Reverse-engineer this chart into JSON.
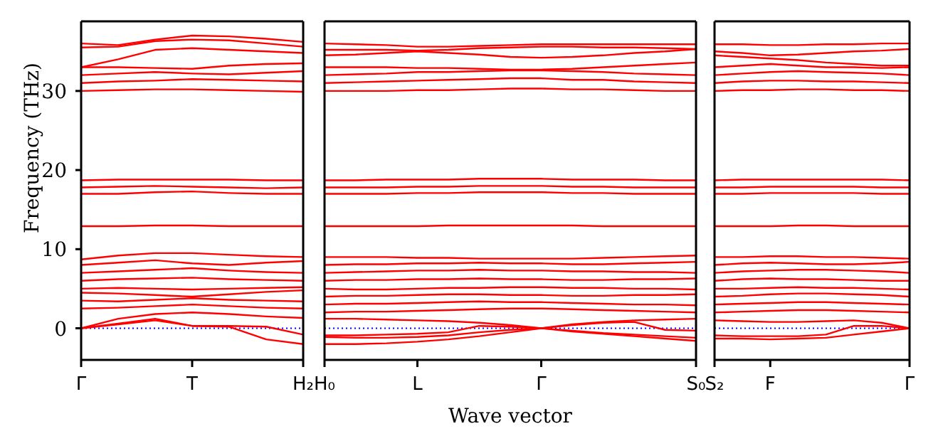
{
  "chart_data": [
    {
      "type": "line",
      "ylabel": "Frequency (THz)",
      "categories": [
        "Γ",
        null,
        null,
        "T",
        null,
        null,
        "H₂"
      ],
      "ylim": [
        -4,
        38.8
      ],
      "yticks": [
        0,
        10,
        20,
        30
      ],
      "marker": "none",
      "line_style": "solid",
      "ref_lines": [
        {
          "axis": "y",
          "value": 0,
          "color": "#0000ff",
          "line_style": "dotted"
        }
      ],
      "series": [
        {
          "color": "#ff0000",
          "values": [
            0,
            0.6,
            1.2,
            0.3,
            0.2,
            -1.4,
            -2
          ]
        },
        {
          "color": "#ff0000",
          "values": [
            0,
            0.5,
            1.0,
            0.3,
            0.3,
            0.2,
            -0.8
          ]
        },
        {
          "color": "#ff0000",
          "values": [
            0,
            1.2,
            1.8,
            2.0,
            1.8,
            1.5,
            1.3
          ]
        },
        {
          "color": "#ff0000",
          "values": [
            2.5,
            2.6,
            2.8,
            3.0,
            2.8,
            2.6,
            2.5
          ]
        },
        {
          "color": "#ff0000",
          "values": [
            3.5,
            3.4,
            3.6,
            3.8,
            3.6,
            3.5,
            3.4
          ]
        },
        {
          "color": "#ff0000",
          "values": [
            4.5,
            4.4,
            4.2,
            4.0,
            4.3,
            4.6,
            4.8
          ]
        },
        {
          "color": "#ff0000",
          "values": [
            5,
            5.1,
            5,
            4.9,
            5,
            5.1,
            5.2
          ]
        },
        {
          "color": "#ff0000",
          "values": [
            6,
            6.2,
            6.3,
            6.4,
            6.2,
            6.1,
            6
          ]
        },
        {
          "color": "#ff0000",
          "values": [
            7,
            7.2,
            7.4,
            7.6,
            7.3,
            7.1,
            7
          ]
        },
        {
          "color": "#ff0000",
          "values": [
            8,
            8.3,
            8.6,
            8.2,
            8.0,
            8.3,
            8.5
          ]
        },
        {
          "color": "#ff0000",
          "values": [
            8.7,
            9.2,
            9.5,
            9.5,
            9.3,
            9.1,
            9
          ]
        },
        {
          "color": "#ff0000",
          "values": [
            12.9,
            12.9,
            13,
            13,
            12.9,
            12.9,
            12.9
          ]
        },
        {
          "color": "#ff0000",
          "values": [
            17,
            17,
            17.2,
            17.3,
            17.1,
            17,
            17
          ]
        },
        {
          "color": "#ff0000",
          "values": [
            17.8,
            17.9,
            18,
            17.9,
            17.8,
            17.7,
            17.8
          ]
        },
        {
          "color": "#ff0000",
          "values": [
            18.7,
            18.8,
            18.8,
            18.8,
            18.8,
            18.7,
            18.7
          ]
        },
        {
          "color": "#ff0000",
          "values": [
            30,
            30.1,
            30.2,
            30.2,
            30.1,
            30,
            29.9
          ]
        },
        {
          "color": "#ff0000",
          "values": [
            31,
            31.2,
            31.3,
            31.5,
            31.4,
            31.3,
            31.2
          ]
        },
        {
          "color": "#ff0000",
          "values": [
            32,
            32.2,
            32.4,
            32.2,
            32.1,
            32.3,
            32.5
          ]
        },
        {
          "color": "#ff0000",
          "values": [
            33,
            33,
            32.9,
            32.8,
            33.2,
            33.4,
            33.5
          ]
        },
        {
          "color": "#ff0000",
          "values": [
            33,
            34,
            35.2,
            35.4,
            35.2,
            35,
            34.8
          ]
        },
        {
          "color": "#ff0000",
          "values": [
            35.5,
            35.6,
            36.3,
            36.5,
            36.4,
            36,
            35.6
          ]
        },
        {
          "color": "#ff0000",
          "values": [
            36,
            35.8,
            36.5,
            37,
            36.9,
            36.6,
            36.2
          ]
        }
      ]
    },
    {
      "type": "line",
      "xlabel": "Wave vector",
      "categories": [
        "H₀",
        null,
        null,
        "L",
        null,
        null,
        null,
        "Γ",
        null,
        null,
        null,
        null,
        "S₀"
      ],
      "ylim": [
        -4,
        38.8
      ],
      "tick_labels": "x",
      "marker": "none",
      "line_style": "solid",
      "ref_lines": [
        {
          "axis": "y",
          "value": 0,
          "color": "#0000ff",
          "line_style": "dotted"
        }
      ],
      "series": [
        {
          "color": "#ff0000",
          "values": [
            -2,
            -2,
            -1.9,
            -1.7,
            -1.4,
            -1,
            -0.5,
            0,
            -0.4,
            -0.7,
            -1,
            -1.3,
            -1.6
          ]
        },
        {
          "color": "#ff0000",
          "values": [
            -1.1,
            -1.2,
            -1.2,
            -1.1,
            -0.9,
            -0.5,
            -0.2,
            0,
            -0.3,
            -0.6,
            -0.8,
            -1.0,
            -1.2
          ]
        },
        {
          "color": "#ff0000",
          "values": [
            -0.9,
            -0.9,
            -0.8,
            -0.7,
            -0.5,
            0.3,
            0.2,
            0,
            0.4,
            0.7,
            0.8,
            -0.2,
            -0.3
          ]
        },
        {
          "color": "#ff0000",
          "values": [
            1.2,
            1.2,
            1.1,
            1.0,
            0.9,
            0.7,
            0.4,
            0,
            0.5,
            0.8,
            1.0,
            1.1,
            1.2
          ]
        },
        {
          "color": "#ff0000",
          "values": [
            2,
            2.1,
            2.1,
            2.2,
            2.3,
            2.4,
            2.5,
            2.5,
            2.4,
            2.3,
            2.2,
            2.1,
            2
          ]
        },
        {
          "color": "#ff0000",
          "values": [
            3,
            3.1,
            3.1,
            3.2,
            3.3,
            3.4,
            3.3,
            3.3,
            3.2,
            3.1,
            3.0,
            3.0,
            2.9
          ]
        },
        {
          "color": "#ff0000",
          "values": [
            4,
            4.1,
            4.1,
            4.2,
            4.3,
            4.3,
            4.2,
            4.2,
            4.1,
            4.1,
            4.2,
            4.2,
            4.3
          ]
        },
        {
          "color": "#ff0000",
          "values": [
            5,
            4.9,
            4.9,
            5,
            5.1,
            5.1,
            5.2,
            5.2,
            5.1,
            5.1,
            5,
            5,
            4.9
          ]
        },
        {
          "color": "#ff0000",
          "values": [
            6,
            6.1,
            6.1,
            6.2,
            6.2,
            6.3,
            6.2,
            6.2,
            6.1,
            6.1,
            6.2,
            6.2,
            6.3
          ]
        },
        {
          "color": "#ff0000",
          "values": [
            7,
            7.1,
            7.2,
            7.3,
            7.3,
            7.4,
            7.3,
            7.3,
            7.2,
            7.2,
            7.1,
            7.1,
            7
          ]
        },
        {
          "color": "#ff0000",
          "values": [
            8,
            8.1,
            8.1,
            8.2,
            8.2,
            8.3,
            8.2,
            8.2,
            8.1,
            8.1,
            8.2,
            8.3,
            8.4
          ]
        },
        {
          "color": "#ff0000",
          "values": [
            9,
            9,
            9,
            8.9,
            8.9,
            8.8,
            8.8,
            8.8,
            8.8,
            8.9,
            9,
            9.1,
            9.2
          ]
        },
        {
          "color": "#ff0000",
          "values": [
            12.9,
            12.9,
            12.9,
            12.9,
            13,
            13,
            13,
            13,
            13,
            12.9,
            12.9,
            12.9,
            12.9
          ]
        },
        {
          "color": "#ff0000",
          "values": [
            17,
            17,
            17,
            17.1,
            17.1,
            17.2,
            17.2,
            17.2,
            17.1,
            17.1,
            17,
            17,
            17
          ]
        },
        {
          "color": "#ff0000",
          "values": [
            17.8,
            17.8,
            17.8,
            17.9,
            17.9,
            18,
            18,
            18,
            17.9,
            17.9,
            17.8,
            17.8,
            17.8
          ]
        },
        {
          "color": "#ff0000",
          "values": [
            18.7,
            18.7,
            18.8,
            18.8,
            18.8,
            18.9,
            18.9,
            18.9,
            18.8,
            18.8,
            18.8,
            18.7,
            18.7
          ]
        },
        {
          "color": "#ff0000",
          "values": [
            30,
            30,
            30,
            30.1,
            30.1,
            30.2,
            30.3,
            30.3,
            30.2,
            30.2,
            30.1,
            30,
            30
          ]
        },
        {
          "color": "#ff0000",
          "values": [
            31,
            31.1,
            31.2,
            31.3,
            31.4,
            31.5,
            31.6,
            31.6,
            31.4,
            31.4,
            31.2,
            31.1,
            31
          ]
        },
        {
          "color": "#ff0000",
          "values": [
            32,
            32.1,
            32.2,
            32.4,
            32.4,
            32.5,
            32.6,
            32.6,
            32.5,
            32.4,
            32.2,
            32.1,
            32
          ]
        },
        {
          "color": "#ff0000",
          "values": [
            33,
            33,
            33,
            32.9,
            32.9,
            32.8,
            32.7,
            32.7,
            32.8,
            33,
            33.2,
            33.4,
            33.6
          ]
        },
        {
          "color": "#ff0000",
          "values": [
            34.5,
            34.6,
            34.8,
            35,
            34.8,
            34.6,
            34.3,
            34.2,
            34.3,
            34.5,
            34.8,
            35,
            35.3
          ]
        },
        {
          "color": "#ff0000",
          "values": [
            35.2,
            35.2,
            35.2,
            35.1,
            35.2,
            35.4,
            35.5,
            35.6,
            35.6,
            35.5,
            35.5,
            35.4,
            35.3
          ]
        },
        {
          "color": "#ff0000",
          "values": [
            36,
            35.9,
            35.8,
            35.6,
            35.6,
            35.7,
            35.8,
            35.9,
            35.9,
            35.9,
            35.9,
            35.9,
            35.9
          ]
        }
      ]
    },
    {
      "type": "line",
      "categories": [
        "S₂",
        null,
        "F",
        null,
        null,
        null,
        null,
        "Γ"
      ],
      "ylim": [
        -4,
        38.8
      ],
      "tick_labels": "x",
      "marker": "none",
      "line_style": "solid",
      "ref_lines": [
        {
          "axis": "y",
          "value": 0,
          "color": "#0000ff",
          "line_style": "dotted"
        }
      ],
      "series": [
        {
          "color": "#ff0000",
          "values": [
            -1.3,
            -1.3,
            -1.4,
            -1.3,
            -1.2,
            -0.8,
            -0.4,
            0
          ]
        },
        {
          "color": "#ff0000",
          "values": [
            -0.9,
            -1.0,
            -1.0,
            -1.0,
            -0.8,
            0.3,
            0.3,
            0
          ]
        },
        {
          "color": "#ff0000",
          "values": [
            1.0,
            0.9,
            0.8,
            0.8,
            0.9,
            1.0,
            0.7,
            0
          ]
        },
        {
          "color": "#ff0000",
          "values": [
            2,
            2.1,
            2.2,
            2.3,
            2.3,
            2.2,
            2.1,
            2
          ]
        },
        {
          "color": "#ff0000",
          "values": [
            3,
            3.1,
            3.2,
            3.3,
            3.3,
            3.2,
            3.1,
            3
          ]
        },
        {
          "color": "#ff0000",
          "values": [
            4,
            4.1,
            4.3,
            4.4,
            4.4,
            4.3,
            4.2,
            4
          ]
        },
        {
          "color": "#ff0000",
          "values": [
            5,
            5,
            5.1,
            5.2,
            5.1,
            5.1,
            5,
            4.9
          ]
        },
        {
          "color": "#ff0000",
          "values": [
            6,
            6.2,
            6.3,
            6.2,
            6.2,
            6.1,
            6,
            6
          ]
        },
        {
          "color": "#ff0000",
          "values": [
            7,
            7.2,
            7.3,
            7.4,
            7.4,
            7.3,
            7.2,
            7
          ]
        },
        {
          "color": "#ff0000",
          "values": [
            8,
            8.2,
            8.3,
            8.2,
            8.1,
            8.1,
            8.2,
            8.4
          ]
        },
        {
          "color": "#ff0000",
          "values": [
            9,
            9,
            9.1,
            9.1,
            9,
            9,
            8.9,
            8.8
          ]
        },
        {
          "color": "#ff0000",
          "values": [
            12.9,
            12.9,
            12.9,
            13,
            13,
            12.9,
            12.9,
            12.9
          ]
        },
        {
          "color": "#ff0000",
          "values": [
            17,
            17,
            17.1,
            17.1,
            17.1,
            17.1,
            17,
            17
          ]
        },
        {
          "color": "#ff0000",
          "values": [
            17.8,
            17.8,
            17.9,
            17.9,
            17.9,
            17.9,
            17.8,
            17.8
          ]
        },
        {
          "color": "#ff0000",
          "values": [
            18.7,
            18.8,
            18.8,
            18.8,
            18.8,
            18.8,
            18.8,
            18.7
          ]
        },
        {
          "color": "#ff0000",
          "values": [
            30,
            30.1,
            30.1,
            30.2,
            30.2,
            30.1,
            30.1,
            30
          ]
        },
        {
          "color": "#ff0000",
          "values": [
            31,
            31.2,
            31.3,
            31.3,
            31.2,
            31.2,
            31.1,
            31
          ]
        },
        {
          "color": "#ff0000",
          "values": [
            32,
            32.2,
            32.4,
            32.5,
            32.4,
            32.3,
            32.2,
            32
          ]
        },
        {
          "color": "#ff0000",
          "values": [
            33,
            33.2,
            33.4,
            33.2,
            33,
            33,
            32.9,
            33
          ]
        },
        {
          "color": "#ff0000",
          "values": [
            34.5,
            34.3,
            34.1,
            33.9,
            33.6,
            33.4,
            33.2,
            33.2
          ]
        },
        {
          "color": "#ff0000",
          "values": [
            35,
            34.8,
            34.5,
            34.6,
            34.8,
            35,
            35.1,
            35.3
          ]
        },
        {
          "color": "#ff0000",
          "values": [
            35.9,
            35.9,
            35.8,
            35.8,
            35.9,
            35.9,
            36,
            36
          ]
        }
      ]
    }
  ]
}
